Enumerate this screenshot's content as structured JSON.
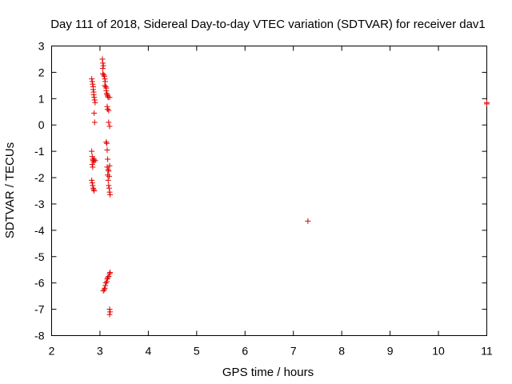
{
  "chart_data": {
    "type": "scatter",
    "title": "Day 111 of 2018, Sidereal Day-to-day VTEC variation (SDTVAR) for receiver dav1",
    "xlabel": "GPS time / hours",
    "ylabel": "SDTVAR / TECUs",
    "xlim": [
      2,
      11
    ],
    "ylim": [
      -8,
      3
    ],
    "xticks": [
      2,
      3,
      4,
      5,
      6,
      7,
      8,
      9,
      10,
      11
    ],
    "yticks": [
      -8,
      -7,
      -6,
      -5,
      -4,
      -3,
      -2,
      -1,
      0,
      1,
      2,
      3
    ],
    "grid": false,
    "legend": "none",
    "marker": "plus",
    "color": "#e00000",
    "points": [
      [
        2.83,
        1.75
      ],
      [
        2.84,
        1.65
      ],
      [
        2.85,
        1.55
      ],
      [
        2.86,
        1.45
      ],
      [
        2.86,
        1.35
      ],
      [
        2.87,
        1.25
      ],
      [
        2.87,
        1.15
      ],
      [
        2.88,
        1.05
      ],
      [
        2.89,
        0.95
      ],
      [
        2.9,
        0.85
      ],
      [
        2.88,
        0.45
      ],
      [
        2.89,
        0.1
      ],
      [
        2.83,
        -1.0
      ],
      [
        2.84,
        -1.2
      ],
      [
        2.85,
        -1.3
      ],
      [
        2.86,
        -1.35
      ],
      [
        2.87,
        -1.4
      ],
      [
        2.88,
        -1.3
      ],
      [
        2.9,
        -1.35
      ],
      [
        2.84,
        -1.5
      ],
      [
        2.85,
        -1.6
      ],
      [
        2.83,
        -2.1
      ],
      [
        2.84,
        -2.2
      ],
      [
        2.85,
        -2.3
      ],
      [
        2.86,
        -2.4
      ],
      [
        2.88,
        -2.5
      ],
      [
        2.87,
        -2.45
      ],
      [
        3.05,
        2.5
      ],
      [
        3.06,
        2.35
      ],
      [
        3.07,
        2.25
      ],
      [
        3.06,
        2.15
      ],
      [
        3.06,
        1.95
      ],
      [
        3.08,
        1.9
      ],
      [
        3.09,
        1.85
      ],
      [
        3.1,
        1.75
      ],
      [
        3.11,
        1.65
      ],
      [
        3.1,
        1.5
      ],
      [
        3.12,
        1.45
      ],
      [
        3.13,
        1.4
      ],
      [
        3.13,
        1.3
      ],
      [
        3.14,
        1.2
      ],
      [
        3.15,
        1.15
      ],
      [
        3.16,
        1.1
      ],
      [
        3.17,
        1.05
      ],
      [
        3.2,
        1.05
      ],
      [
        3.15,
        0.7
      ],
      [
        3.16,
        0.6
      ],
      [
        3.18,
        0.55
      ],
      [
        3.18,
        0.1
      ],
      [
        3.2,
        -0.05
      ],
      [
        3.13,
        -0.65
      ],
      [
        3.14,
        -0.7
      ],
      [
        3.15,
        -0.95
      ],
      [
        3.16,
        -1.3
      ],
      [
        3.15,
        -1.6
      ],
      [
        3.17,
        -1.7
      ],
      [
        3.18,
        -1.75
      ],
      [
        3.2,
        -1.55
      ],
      [
        3.16,
        -1.9
      ],
      [
        3.19,
        -1.95
      ],
      [
        3.17,
        -2.1
      ],
      [
        3.18,
        -2.3
      ],
      [
        3.19,
        -2.4
      ],
      [
        3.2,
        -2.55
      ],
      [
        3.21,
        -2.65
      ],
      [
        3.07,
        -6.3
      ],
      [
        3.09,
        -6.25
      ],
      [
        3.1,
        -6.2
      ],
      [
        3.11,
        -6.1
      ],
      [
        3.12,
        -6.0
      ],
      [
        3.14,
        -5.95
      ],
      [
        3.15,
        -5.85
      ],
      [
        3.16,
        -5.8
      ],
      [
        3.18,
        -5.75
      ],
      [
        3.2,
        -5.65
      ],
      [
        3.21,
        -5.6
      ],
      [
        3.2,
        -7.0
      ],
      [
        3.21,
        -7.1
      ],
      [
        3.2,
        -7.2
      ],
      [
        7.3,
        -3.65
      ],
      [
        11.0,
        0.8
      ],
      [
        11.0,
        0.85
      ]
    ]
  }
}
